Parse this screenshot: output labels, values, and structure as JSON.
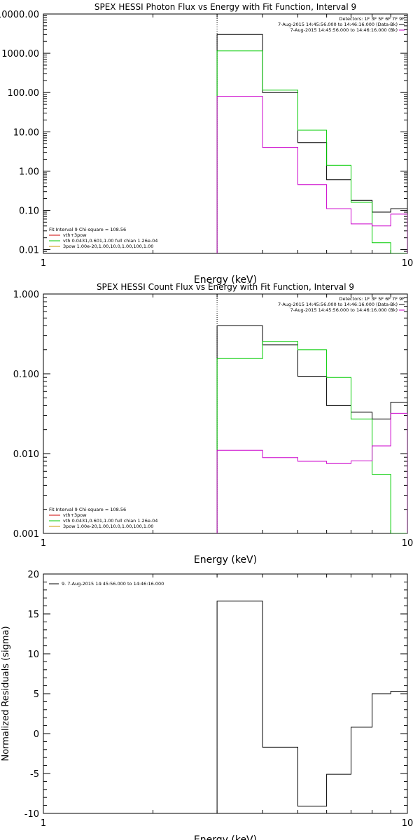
{
  "chart_data": [
    {
      "type": "line",
      "title": "SPEX HESSI Photon Flux vs Energy with Fit Function, Interval 9",
      "xlabel": "Energy (keV)",
      "ylabel": "",
      "xscale": "log",
      "yscale": "log",
      "xlim": [
        1,
        10
      ],
      "ylim": [
        0.008,
        10000
      ],
      "x_ticks": [
        1,
        10
      ],
      "x_tick_labels": [
        "1",
        "10"
      ],
      "y_ticks": [
        0.01,
        0.1,
        1,
        10,
        100,
        1000,
        10000
      ],
      "y_tick_labels": [
        "0.01",
        "0.10",
        "1.00",
        "10.00",
        "100.00",
        "1000.00",
        "10000.00"
      ],
      "marker_x": 3,
      "grid": false,
      "legend_topright": [
        {
          "text": "Detectors: 1F 3F 5F 6F 7F 9F",
          "color": ""
        },
        {
          "text": "7-Aug-2015 14:45:56.000 to 14:46:16.000 (Data-Bk)",
          "color": "#000000"
        },
        {
          "text": "7-Aug-2015 14:45:56.000 to 14:46:16.000 (Bk)",
          "color": "#cc00cc"
        }
      ],
      "legend_bottomleft": [
        {
          "text": "Fit Interval 9   Chi-square = 108.56",
          "color": ""
        },
        {
          "text": "vth+3pow",
          "color": "#cc0000"
        },
        {
          "text": "vth 0.0431,0.601,1.00  full chian 1.26e-04",
          "color": "#00cc00"
        },
        {
          "text": "3pow 1.00e-20,1.00,10.0,1.00,100,1.00",
          "color": "#cc9900"
        }
      ],
      "edges": [
        3,
        4,
        5,
        6,
        7,
        8,
        9,
        10
      ],
      "series": [
        {
          "name": "7-Aug-2015 14:45:56.000 to 14:46:16.000 (Data-Bk)",
          "color": "#000000",
          "values": [
            3000,
            100,
            5.3,
            0.6,
            0.18,
            0.09,
            0.11
          ]
        },
        {
          "name": "vth 0.0431,0.601,1.00  full chian 1.26e-04",
          "color": "#00cc00",
          "values": [
            1150,
            115,
            11,
            1.4,
            0.16,
            0.015,
            0.002
          ]
        },
        {
          "name": "7-Aug-2015 14:45:56.000 to 14:46:16.000 (Bk)",
          "color": "#cc00cc",
          "values": [
            80,
            4,
            0.45,
            0.11,
            0.045,
            0.04,
            0.08
          ]
        }
      ]
    },
    {
      "type": "line",
      "title": "SPEX HESSI Count Flux vs Energy with Fit Function, Interval 9",
      "xlabel": "Energy (keV)",
      "ylabel": "",
      "xscale": "log",
      "yscale": "log",
      "xlim": [
        1,
        10
      ],
      "ylim": [
        0.001,
        1
      ],
      "x_ticks": [
        1,
        10
      ],
      "x_tick_labels": [
        "1",
        "10"
      ],
      "y_ticks": [
        0.001,
        0.01,
        0.1,
        1
      ],
      "y_tick_labels": [
        "0.001",
        "0.010",
        "0.100",
        "1.000"
      ],
      "marker_x": 3,
      "grid": false,
      "legend_topright": [
        {
          "text": "Detectors: 1F 3F 5F 6F 7F 9F",
          "color": ""
        },
        {
          "text": "7-Aug-2015 14:45:56.000 to 14:46:16.000 (Data-Bk)",
          "color": "#000000"
        },
        {
          "text": "7-Aug-2015 14:45:56.000 to 14:46:16.000 (Bk)",
          "color": "#cc00cc"
        }
      ],
      "legend_bottomleft": [
        {
          "text": "Fit Interval 9   Chi-square = 108.56",
          "color": ""
        },
        {
          "text": "vth+3pow",
          "color": "#cc0000"
        },
        {
          "text": "vth 0.0431,0.601,1.00  full chian 1.26e-04",
          "color": "#00cc00"
        },
        {
          "text": "3pow 1.00e-20,1.00,10.0,1.00,100,1.00",
          "color": "#cc9900"
        }
      ],
      "edges": [
        3,
        4,
        5,
        6,
        7,
        8,
        9,
        10
      ],
      "series": [
        {
          "name": "7-Aug-2015 14:45:56.000 to 14:46:16.000 (Data-Bk)",
          "color": "#000000",
          "values": [
            0.4,
            0.23,
            0.093,
            0.04,
            0.033,
            0.027,
            0.044
          ]
        },
        {
          "name": "vth 0.0431,0.601,1.00  full chian 1.26e-04",
          "color": "#00cc00",
          "values": [
            0.155,
            0.255,
            0.2,
            0.09,
            0.027,
            0.0055,
            0.0005
          ]
        },
        {
          "name": "7-Aug-2015 14:45:56.000 to 14:46:16.000 (Bk)",
          "color": "#cc00cc",
          "values": [
            0.011,
            0.0089,
            0.008,
            0.0075,
            0.0081,
            0.0125,
            0.032
          ]
        }
      ]
    },
    {
      "type": "line",
      "title": "",
      "xlabel": "Energy (keV)",
      "ylabel": "Normalized Residuals (sigma)",
      "xscale": "log",
      "yscale": "linear",
      "xlim": [
        1,
        10
      ],
      "ylim": [
        -10,
        20
      ],
      "x_ticks": [
        1,
        10
      ],
      "x_tick_labels": [
        "1",
        "10"
      ],
      "y_ticks": [
        -10,
        -5,
        0,
        5,
        10,
        15,
        20
      ],
      "y_tick_labels": [
        "-10",
        "-5",
        "0",
        "5",
        "10",
        "15",
        "20"
      ],
      "grid": false,
      "legend_topleft": [
        {
          "text": "9.  7-Aug-2015 14:45:56.000 to 14:46:16.000",
          "color": "#000000"
        }
      ],
      "edges": [
        3,
        4,
        5,
        6,
        7,
        8,
        9,
        10
      ],
      "series": [
        {
          "name": "9.  7-Aug-2015 14:45:56.000 to 14:46:16.000",
          "color": "#000000",
          "values": [
            16.6,
            -1.7,
            -9.1,
            -5.1,
            0.8,
            5.0,
            5.3
          ]
        }
      ]
    }
  ]
}
